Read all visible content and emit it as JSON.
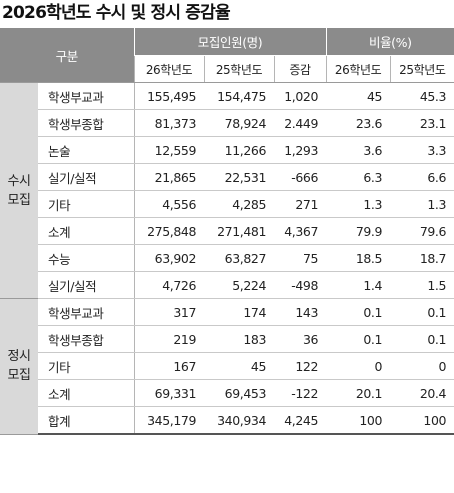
{
  "title": "2026학년도 수시 및 정시 증감율",
  "headers": {
    "category": "구분",
    "recruit": "모집인원(명)",
    "ratio": "비율(%)",
    "sub": [
      "26학년도",
      "25학년도",
      "증감",
      "26학년도",
      "25학년도"
    ]
  },
  "groups": {
    "susi": [
      "수시",
      "모집"
    ],
    "jeongsi": [
      "정시",
      "모집"
    ]
  },
  "rows_susi": [
    {
      "label": "학생부교과",
      "v26": "155,495",
      "v25": "154,475",
      "diff": "1,020",
      "r26": "45",
      "r25": "45.3"
    },
    {
      "label": "학생부종합",
      "v26": "81,373",
      "v25": "78,924",
      "diff": "2.449",
      "r26": "23.6",
      "r25": "23.1"
    },
    {
      "label": "논술",
      "v26": "12,559",
      "v25": "11,266",
      "diff": "1,293",
      "r26": "3.6",
      "r25": "3.3"
    },
    {
      "label": "실기/실적",
      "v26": "21,865",
      "v25": "22,531",
      "diff": "-666",
      "r26": "6.3",
      "r25": "6.6"
    },
    {
      "label": "기타",
      "v26": "4,556",
      "v25": "4,285",
      "diff": "271",
      "r26": "1.3",
      "r25": "1.3"
    },
    {
      "label": "소계",
      "v26": "275,848",
      "v25": "271,481",
      "diff": "4,367",
      "r26": "79.9",
      "r25": "79.6"
    }
  ],
  "rows_jeongsi": [
    {
      "label": "수능",
      "v26": "63,902",
      "v25": "63,827",
      "diff": "75",
      "r26": "18.5",
      "r25": "18.7"
    },
    {
      "label": "실기/실적",
      "v26": "4,726",
      "v25": "5,224",
      "diff": "-498",
      "r26": "1.4",
      "r25": "1.5"
    },
    {
      "label": "학생부교과",
      "v26": "317",
      "v25": "174",
      "diff": "143",
      "r26": "0.1",
      "r25": "0.1"
    },
    {
      "label": "학생부종합",
      "v26": "219",
      "v25": "183",
      "diff": "36",
      "r26": "0.1",
      "r25": "0.1"
    },
    {
      "label": "기타",
      "v26": "167",
      "v25": "45",
      "diff": "122",
      "r26": "0",
      "r25": "0"
    },
    {
      "label": "소계",
      "v26": "69,331",
      "v25": "69,453",
      "diff": "-122",
      "r26": "20.1",
      "r25": "20.4"
    },
    {
      "label": "합계",
      "v26": "345,179",
      "v25": "340,934",
      "diff": "4,245",
      "r26": "100",
      "r25": "100"
    }
  ]
}
